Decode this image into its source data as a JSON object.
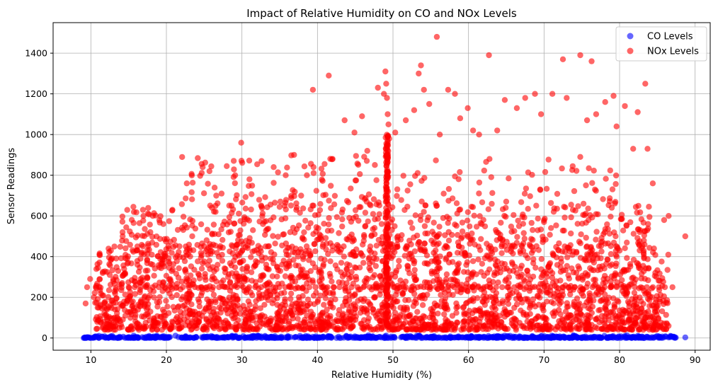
{
  "chart_data": {
    "type": "scatter",
    "title": "Impact of Relative Humidity on CO and NOx Levels",
    "xlabel": "Relative Humidity (%)",
    "ylabel": "Sensor Readings",
    "xlim": [
      5,
      92
    ],
    "ylim": [
      -60,
      1550
    ],
    "xticks": [
      10,
      20,
      30,
      40,
      50,
      60,
      70,
      80,
      90
    ],
    "yticks": [
      0,
      200,
      400,
      600,
      800,
      1000,
      1200,
      1400
    ],
    "grid": true,
    "legend_position": "top-right",
    "series": [
      {
        "name": "CO Levels",
        "color": "#0000ff",
        "alpha": 0.6,
        "points": [
          [
            9.2,
            3
          ],
          [
            10.5,
            5
          ],
          [
            12.0,
            2
          ],
          [
            14.3,
            6
          ],
          [
            16.8,
            4
          ],
          [
            19.5,
            8
          ],
          [
            22.1,
            3
          ],
          [
            25.0,
            7
          ],
          [
            27.6,
            5
          ],
          [
            30.2,
            9
          ],
          [
            33.4,
            4
          ],
          [
            36.1,
            6
          ],
          [
            38.9,
            3
          ],
          [
            41.7,
            8
          ],
          [
            44.2,
            5
          ],
          [
            47.0,
            7
          ],
          [
            49.1,
            12
          ],
          [
            52.3,
            4
          ],
          [
            55.0,
            6
          ],
          [
            57.8,
            3
          ],
          [
            60.4,
            9
          ],
          [
            63.1,
            5
          ],
          [
            65.9,
            7
          ],
          [
            68.6,
            4
          ],
          [
            71.2,
            8
          ],
          [
            73.9,
            6
          ],
          [
            76.5,
            3
          ],
          [
            79.0,
            7
          ],
          [
            81.7,
            5
          ],
          [
            84.3,
            4
          ],
          [
            86.5,
            3
          ],
          [
            88.7,
            3
          ]
        ]
      },
      {
        "name": "NOx Levels",
        "color": "#ff0000",
        "alpha": 0.6,
        "points": [
          [
            9.3,
            170
          ],
          [
            9.5,
            250
          ],
          [
            9.9,
            290
          ],
          [
            10.4,
            200
          ],
          [
            11.8,
            150
          ],
          [
            12.5,
            310
          ],
          [
            14.2,
            520
          ],
          [
            14.8,
            390
          ],
          [
            16.9,
            630
          ],
          [
            18.2,
            600
          ],
          [
            19.6,
            560
          ],
          [
            20.8,
            630
          ],
          [
            22.7,
            760
          ],
          [
            24.8,
            840
          ],
          [
            25.7,
            820
          ],
          [
            27.3,
            710
          ],
          [
            29.1,
            800
          ],
          [
            29.9,
            960
          ],
          [
            31.0,
            780
          ],
          [
            32.6,
            870
          ],
          [
            34.2,
            840
          ],
          [
            35.8,
            800
          ],
          [
            36.9,
            900
          ],
          [
            38.6,
            800
          ],
          [
            39.4,
            1220
          ],
          [
            41.5,
            1290
          ],
          [
            42.0,
            880
          ],
          [
            43.6,
            1070
          ],
          [
            44.9,
            1010
          ],
          [
            45.9,
            1090
          ],
          [
            46.6,
            920
          ],
          [
            48.0,
            1230
          ],
          [
            48.8,
            1200
          ],
          [
            49.0,
            1310
          ],
          [
            49.1,
            1250
          ],
          [
            49.2,
            1180
          ],
          [
            49.3,
            1100
          ],
          [
            49.4,
            1050
          ],
          [
            49.5,
            980
          ],
          [
            50.3,
            1010
          ],
          [
            51.7,
            1070
          ],
          [
            52.8,
            1120
          ],
          [
            53.4,
            1300
          ],
          [
            53.7,
            1340
          ],
          [
            54.1,
            1220
          ],
          [
            54.8,
            1150
          ],
          [
            55.8,
            1480
          ],
          [
            56.2,
            1000
          ],
          [
            57.3,
            1220
          ],
          [
            58.2,
            1200
          ],
          [
            58.9,
            1080
          ],
          [
            59.9,
            1130
          ],
          [
            60.6,
            1020
          ],
          [
            61.4,
            1000
          ],
          [
            62.7,
            1390
          ],
          [
            63.8,
            1020
          ],
          [
            64.8,
            1170
          ],
          [
            66.4,
            1130
          ],
          [
            67.5,
            1180
          ],
          [
            68.8,
            1200
          ],
          [
            69.6,
            1100
          ],
          [
            71.1,
            1200
          ],
          [
            72.5,
            1370
          ],
          [
            73.0,
            1180
          ],
          [
            74.8,
            1390
          ],
          [
            75.7,
            1070
          ],
          [
            76.3,
            1360
          ],
          [
            76.9,
            1100
          ],
          [
            78.1,
            1160
          ],
          [
            79.2,
            1190
          ],
          [
            79.6,
            1040
          ],
          [
            80.7,
            1140
          ],
          [
            81.8,
            930
          ],
          [
            82.4,
            1110
          ],
          [
            83.4,
            1250
          ],
          [
            83.7,
            930
          ],
          [
            84.4,
            760
          ],
          [
            85.9,
            580
          ],
          [
            86.5,
            600
          ],
          [
            87.0,
            250
          ],
          [
            88.7,
            500
          ]
        ],
        "bands": [
          {
            "x_min": 10.5,
            "x_max": 86.5,
            "y_min": 40,
            "y_max": 450,
            "count": 2600
          },
          {
            "x_min": 14.0,
            "x_max": 84.0,
            "y_min": 450,
            "y_max": 650,
            "count": 500
          },
          {
            "x_min": 22.0,
            "x_max": 80.0,
            "y_min": 650,
            "y_max": 900,
            "count": 180
          }
        ],
        "vertical_cluster": {
          "x": 49.2,
          "y_min": 50,
          "y_max": 1000,
          "count": 170
        },
        "horizontal_line": {
          "y": 250,
          "x_min": 15.0,
          "x_max": 86.0,
          "count": 90
        }
      }
    ]
  }
}
